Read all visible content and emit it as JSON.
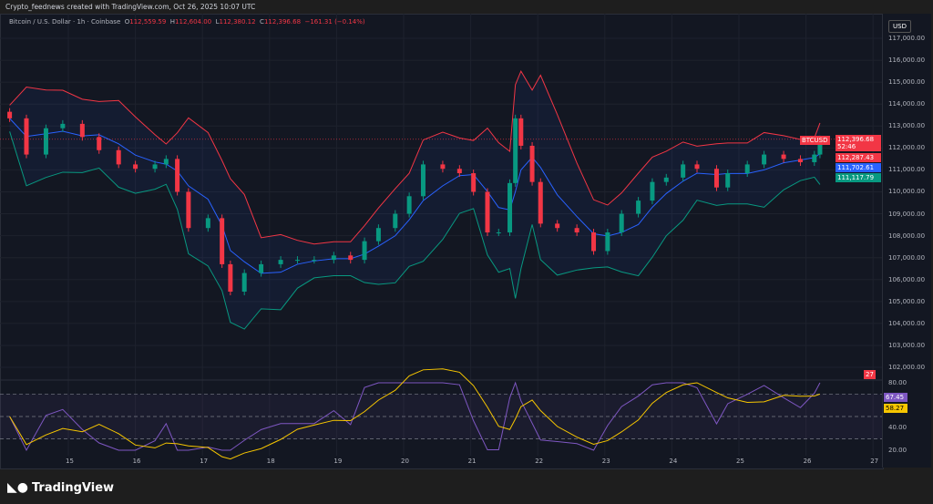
{
  "header": {
    "created": "Crypto_feednews created with TradingView.com, Oct 26, 2025 10:07 UTC"
  },
  "legend": {
    "symbol": "Bitcoin / U.S. Dollar · 1h · Coinbase",
    "o_label": "O",
    "o": "112,559.59",
    "h_label": "H",
    "h": "112,604.00",
    "l_label": "L",
    "l": "112,380.12",
    "c_label": "C",
    "c": "112,396.68",
    "change": "−161.31 (−0.14%)"
  },
  "axis": {
    "currency": "USD",
    "price_ticks": [
      "117,000.00",
      "116,000.00",
      "115,000.00",
      "114,000.00",
      "113,000.00",
      "112,000.00",
      "111,000.00",
      "110,000.00",
      "109,000.00",
      "108,000.00",
      "107,000.00",
      "106,000.00",
      "105,000.00",
      "104,000.00",
      "103,000.00",
      "102,000.00"
    ],
    "rsi_ticks": [
      "80.00",
      "40.00",
      "20.00"
    ],
    "date_ticks": [
      "15",
      "16",
      "17",
      "18",
      "19",
      "20",
      "21",
      "22",
      "23",
      "24",
      "25",
      "26",
      "27"
    ]
  },
  "badges": {
    "symbol": "BTCUSD",
    "last": "112,396.68",
    "countdown": "52:46",
    "bb_upper": "112,287.43",
    "bb_basis": "111,702.61",
    "bb_lower": "111,117.79",
    "volume": "27",
    "rsi": "67.45",
    "rsi_ma": "58.27"
  },
  "colors": {
    "up": "#089981",
    "down": "#f23645",
    "basis": "#2962ff",
    "upper": "#f23645",
    "lower": "#089981",
    "rsi": "#7e57c2",
    "rsi_ma": "#f7c600"
  },
  "footer": {
    "brand": "TradingView"
  },
  "chart_data": {
    "type": "candlestick",
    "title": "Bitcoin / U.S. Dollar · 1h · Coinbase",
    "ylim": [
      101800,
      117500
    ],
    "xlim": [
      "2025-10-14T00:00",
      "2025-10-27T04:00"
    ],
    "indicators": [
      "Bollinger Bands",
      "Volume",
      "RSI"
    ],
    "rsi_ylim": [
      20,
      80
    ],
    "grid": true,
    "x": [
      "2025-10-14T03:00",
      "2025-10-14T09:00",
      "2025-10-14T16:00",
      "2025-10-14T22:00",
      "2025-10-15T05:00",
      "2025-10-15T11:00",
      "2025-10-15T18:00",
      "2025-10-16T00:00",
      "2025-10-16T07:00",
      "2025-10-16T11:00",
      "2025-10-16T15:00",
      "2025-10-16T19:00",
      "2025-10-17T02:00",
      "2025-10-17T07:00",
      "2025-10-17T10:00",
      "2025-10-17T15:00",
      "2025-10-17T21:00",
      "2025-10-18T04:00",
      "2025-10-18T10:00",
      "2025-10-18T16:00",
      "2025-10-18T23:00",
      "2025-10-19T05:00",
      "2025-10-19T10:00",
      "2025-10-19T15:00",
      "2025-10-19T21:00",
      "2025-10-20T02:00",
      "2025-10-20T07:00",
      "2025-10-20T14:00",
      "2025-10-20T20:00",
      "2025-10-21T01:00",
      "2025-10-21T06:00",
      "2025-10-21T10:00",
      "2025-10-21T14:00",
      "2025-10-21T16:00",
      "2025-10-21T18:00",
      "2025-10-21T22:00",
      "2025-10-22T01:00",
      "2025-10-22T07:00",
      "2025-10-22T14:00",
      "2025-10-22T20:00",
      "2025-10-23T01:00",
      "2025-10-23T06:00",
      "2025-10-23T12:00",
      "2025-10-23T17:00",
      "2025-10-23T22:00",
      "2025-10-24T04:00",
      "2025-10-24T09:00",
      "2025-10-24T16:00",
      "2025-10-24T20:00",
      "2025-10-25T03:00",
      "2025-10-25T09:00",
      "2025-10-25T16:00",
      "2025-10-25T22:00",
      "2025-10-26T03:00",
      "2025-10-26T05:00"
    ],
    "close": [
      113350,
      111700,
      112900,
      113100,
      112500,
      111900,
      111250,
      111050,
      111250,
      111500,
      110000,
      108350,
      108800,
      106700,
      105450,
      106300,
      106700,
      106900,
      106900,
      106900,
      107100,
      106900,
      107750,
      108350,
      109000,
      109800,
      111250,
      111050,
      110850,
      110000,
      108150,
      108150,
      110400,
      113350,
      112100,
      110450,
      108550,
      108350,
      108150,
      107300,
      108150,
      109000,
      109600,
      110450,
      110650,
      111250,
      111050,
      110200,
      110850,
      111250,
      111700,
      111500,
      111350,
      111700,
      112397
    ]
  }
}
